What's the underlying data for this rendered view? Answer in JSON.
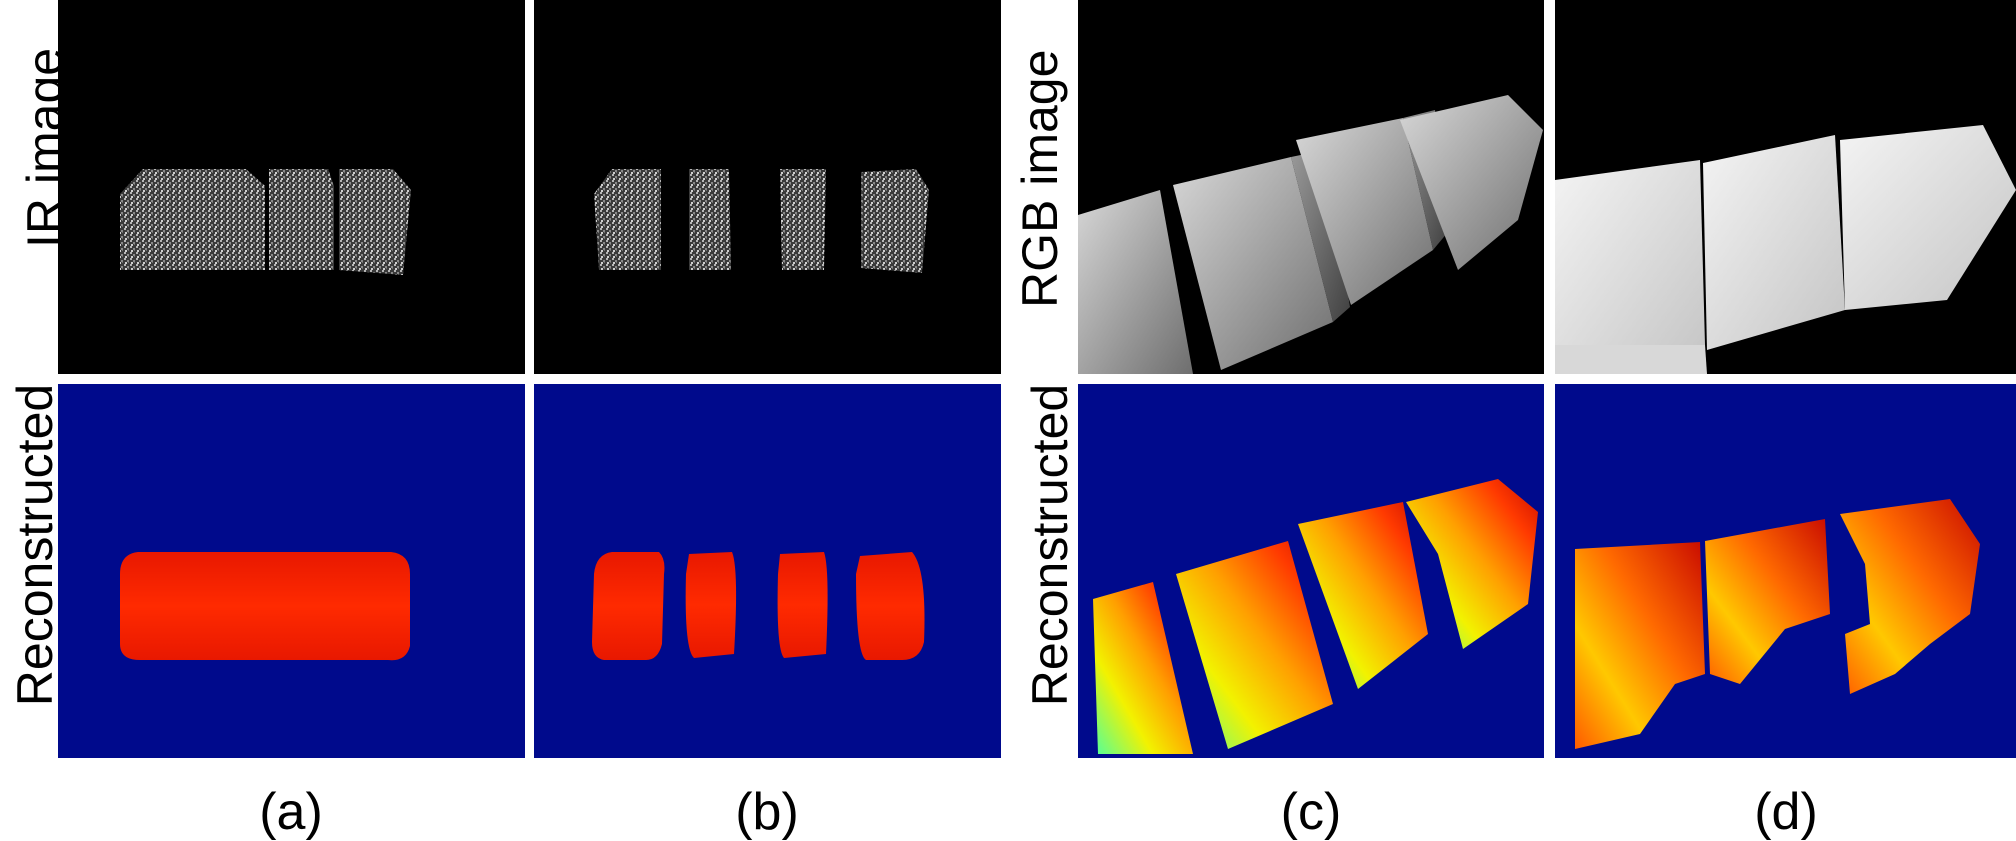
{
  "figure": {
    "row_labels": {
      "ir_image": "IR image",
      "rgb_image": "RGB image",
      "reconstructed_left": "Reconstructed",
      "reconstructed_right": "Reconstructed"
    },
    "column_labels": [
      "(a)",
      "(b)",
      "(c)",
      "(d)"
    ],
    "colors": {
      "background_dark": "#000000",
      "depth_background": "#000a8c",
      "depth_near": "#ff2a00",
      "depth_far": "#4dffa0"
    }
  }
}
